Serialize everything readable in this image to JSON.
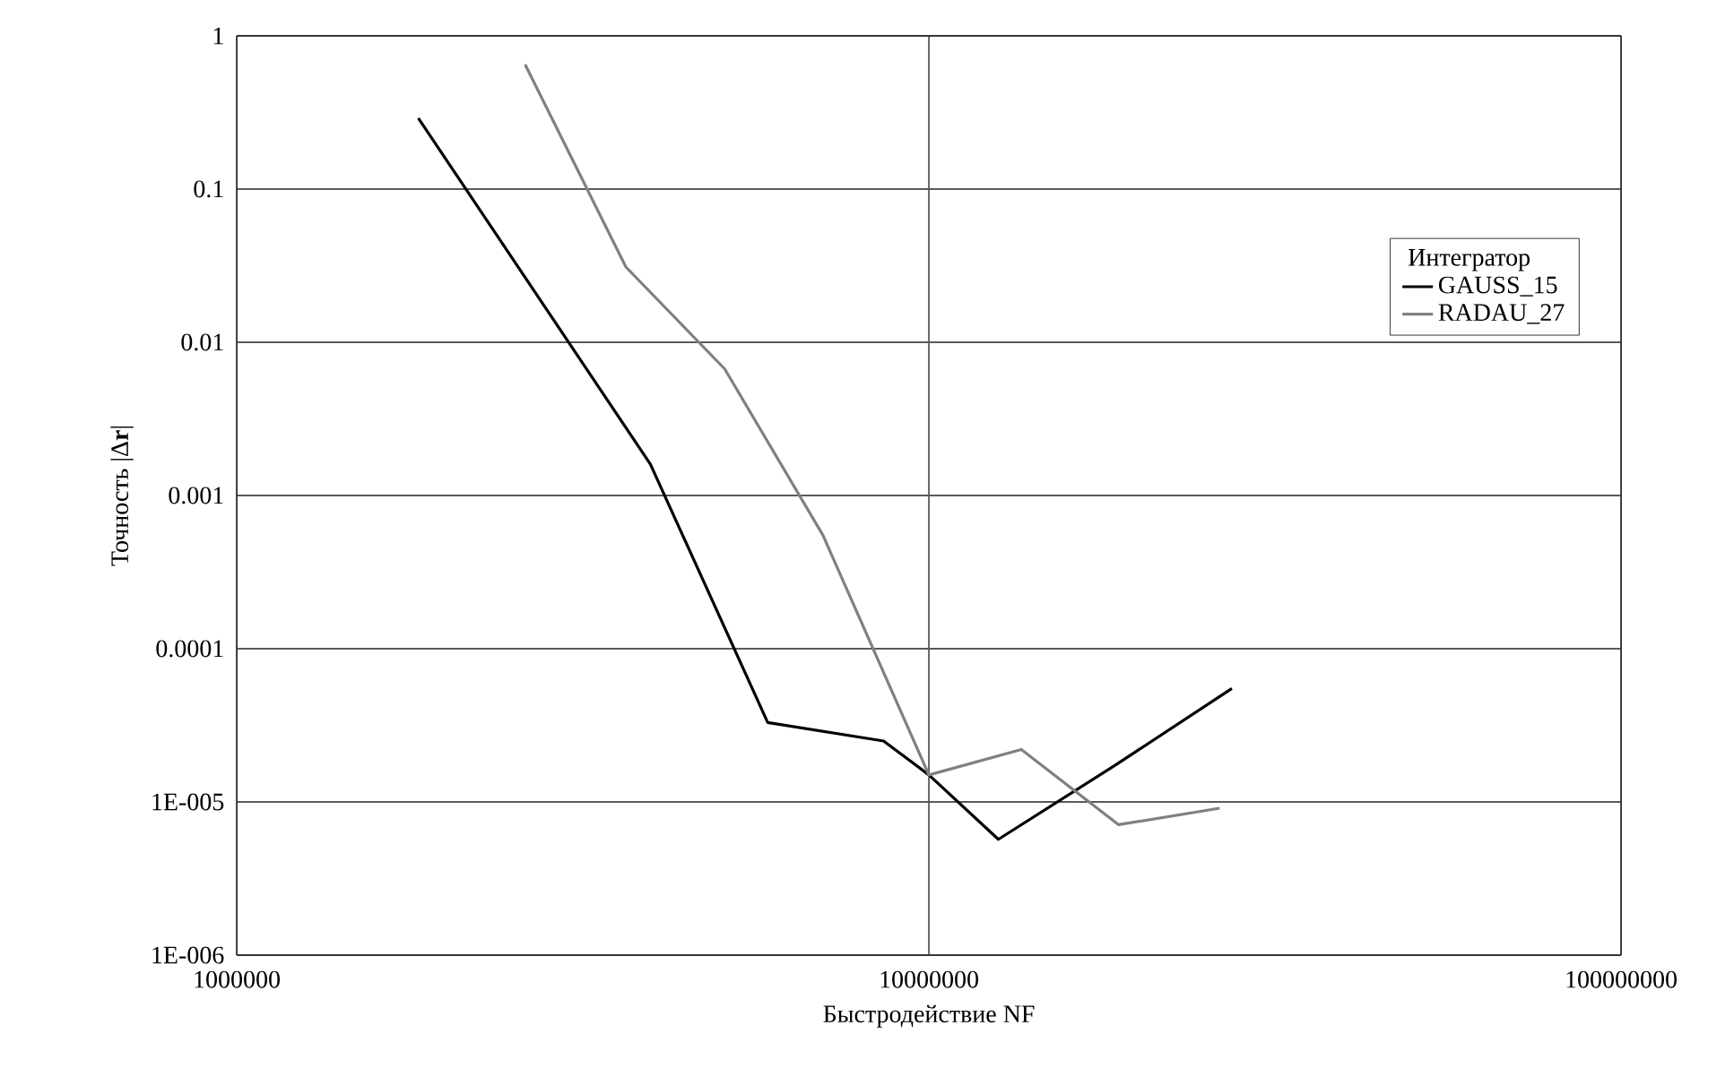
{
  "chart_data": {
    "type": "line",
    "xlabel": "Быстродействие NF",
    "ylabel": "Точность |Δ**r**|",
    "legend_title": "Интегратор",
    "log": "xy",
    "grid": true,
    "legend": "right",
    "marker": "none",
    "line_style": "solid",
    "xlim": [
      1000000,
      100000000
    ],
    "xticks": [
      1000000,
      10000000,
      100000000
    ],
    "ylim": [
      1e-06,
      1
    ],
    "yticks": [
      1,
      0.1,
      0.01,
      0.001,
      0.0001,
      {
        "value": 1e-05,
        "label": "1E-005"
      },
      {
        "value": 1e-06,
        "label": "1E-006"
      }
    ],
    "series": [
      {
        "name": "GAUSS_15",
        "color": "#000000",
        "x": [
          1830000,
          3960000,
          5850000,
          8600000,
          10000000,
          12600000,
          18600000,
          27400000
        ],
        "values": [
          0.29,
          0.0016,
          3.3e-05,
          2.5e-05,
          1.5e-05,
          5.7e-06,
          1.74e-05,
          5.5e-05
        ]
      },
      {
        "name": "RADAU_27",
        "color": "#808080",
        "x": [
          2610000,
          3650000,
          5070000,
          7030000,
          10000000,
          13600000,
          18800000,
          26300000
        ],
        "values": [
          0.65,
          0.031,
          0.0067,
          0.00055,
          1.5e-05,
          2.2e-05,
          7.1e-06,
          9.1e-06
        ]
      }
    ]
  }
}
